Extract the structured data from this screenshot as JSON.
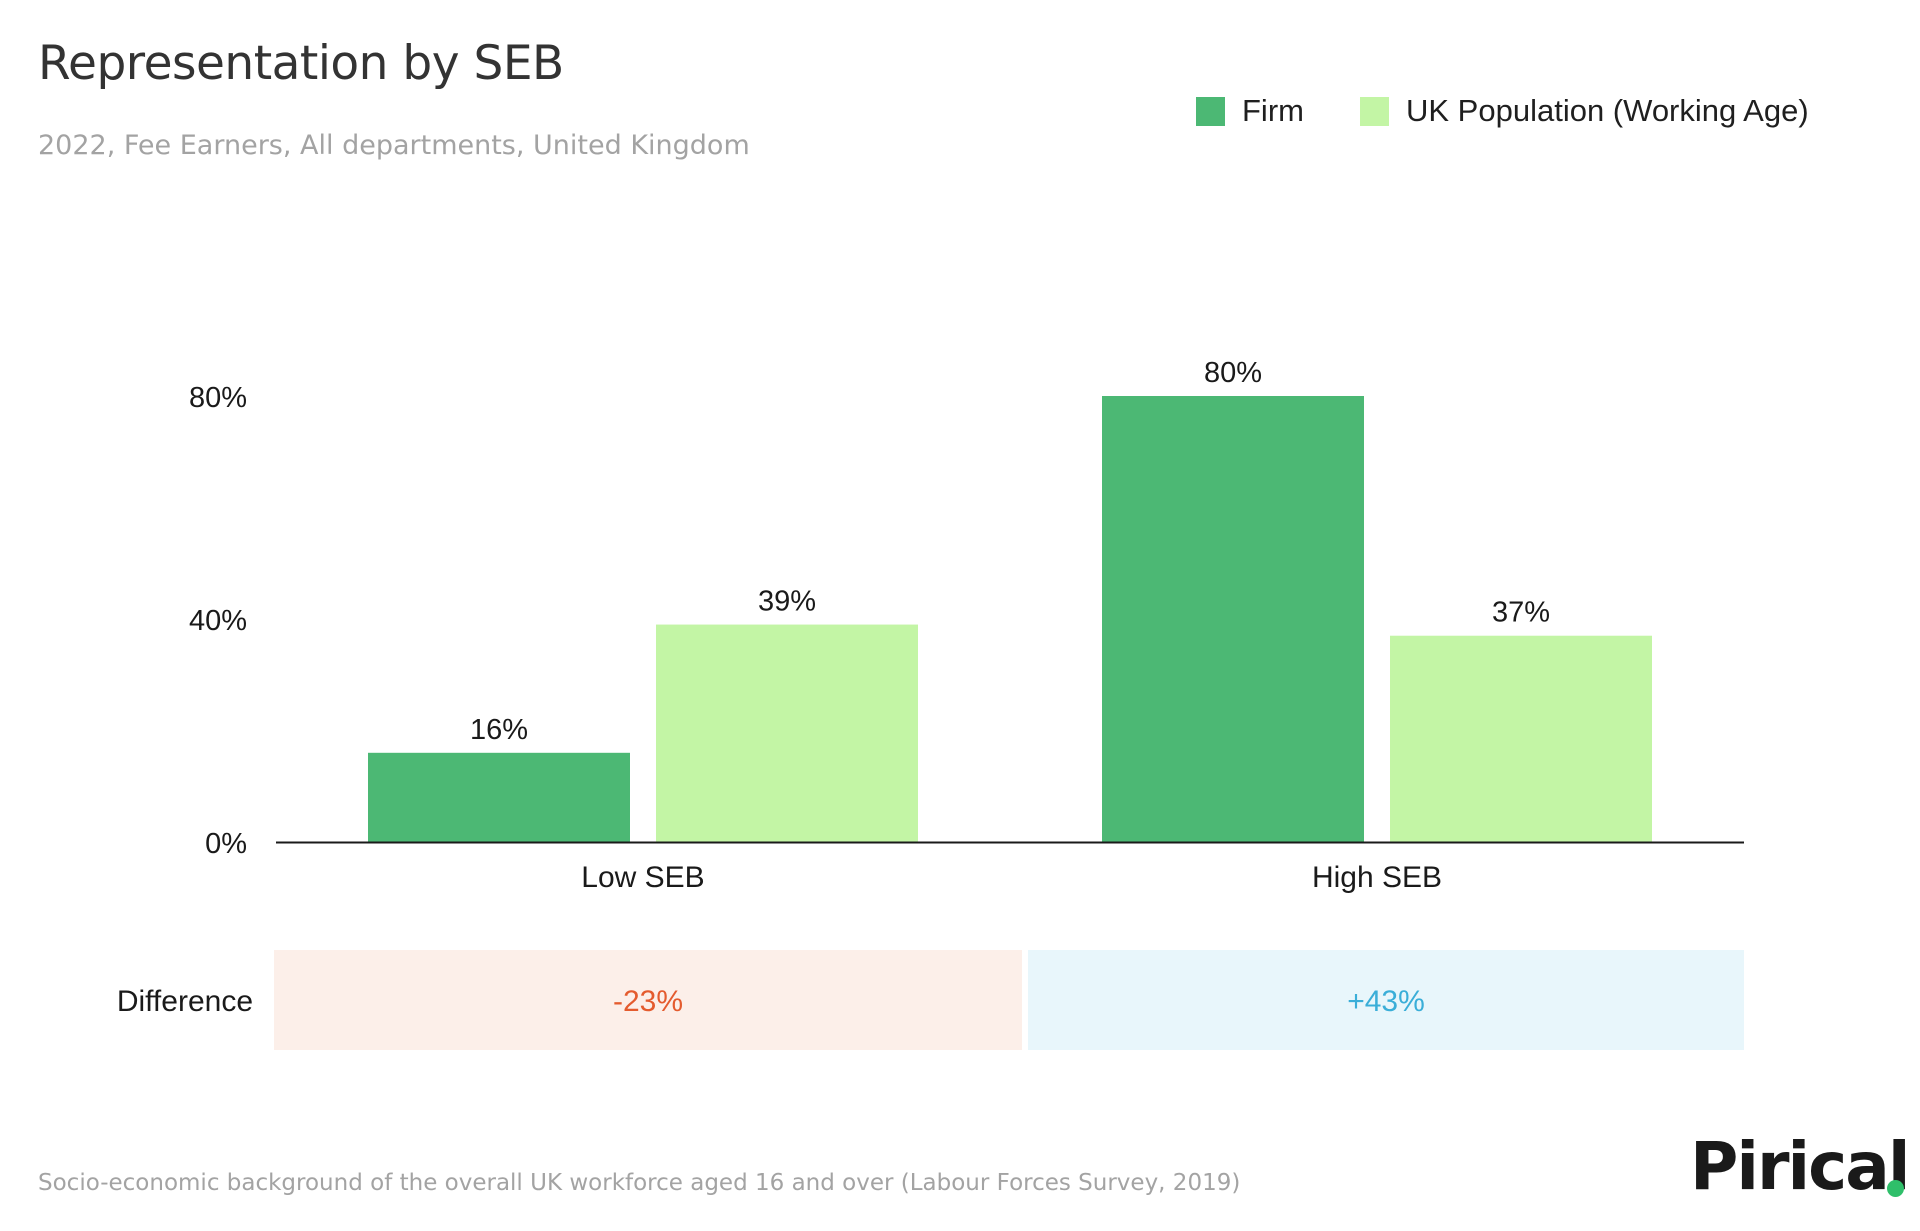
{
  "colors": {
    "firm": "#4cb874",
    "population": "#c3f5a5",
    "negative_bg": "#fcefe9",
    "negative_text": "#e45b2e",
    "positive_bg": "#e8f6fb",
    "positive_text": "#3aaed8",
    "logo_dot": "#2fbf6a"
  },
  "chart_data": {
    "type": "bar",
    "title": "Representation by SEB",
    "subtitle": "2022, Fee Earners, All departments, United Kingdom",
    "categories": [
      "Low SEB",
      "High SEB"
    ],
    "series": [
      {
        "name": "Firm",
        "values": [
          16,
          80
        ],
        "labels": [
          "16%",
          "80%"
        ]
      },
      {
        "name": "UK Population (Working Age)",
        "values": [
          39,
          37
        ],
        "labels": [
          "39%",
          "37%"
        ]
      }
    ],
    "ylim": [
      0,
      80
    ],
    "yticks": [
      {
        "value": 80,
        "label": "80%"
      },
      {
        "value": 40,
        "label": "40%"
      },
      {
        "value": 0,
        "label": "0%"
      }
    ],
    "xlabel": "",
    "ylabel": "",
    "legend_position": "top-right",
    "grid": false,
    "difference": {
      "label": "Difference",
      "values": [
        "-23%",
        "+43%"
      ]
    }
  },
  "footnote": "Socio-economic background of the overall UK workforce aged 16 and over (Labour Forces Survey, 2019)",
  "logo": {
    "text": "Pirical"
  }
}
